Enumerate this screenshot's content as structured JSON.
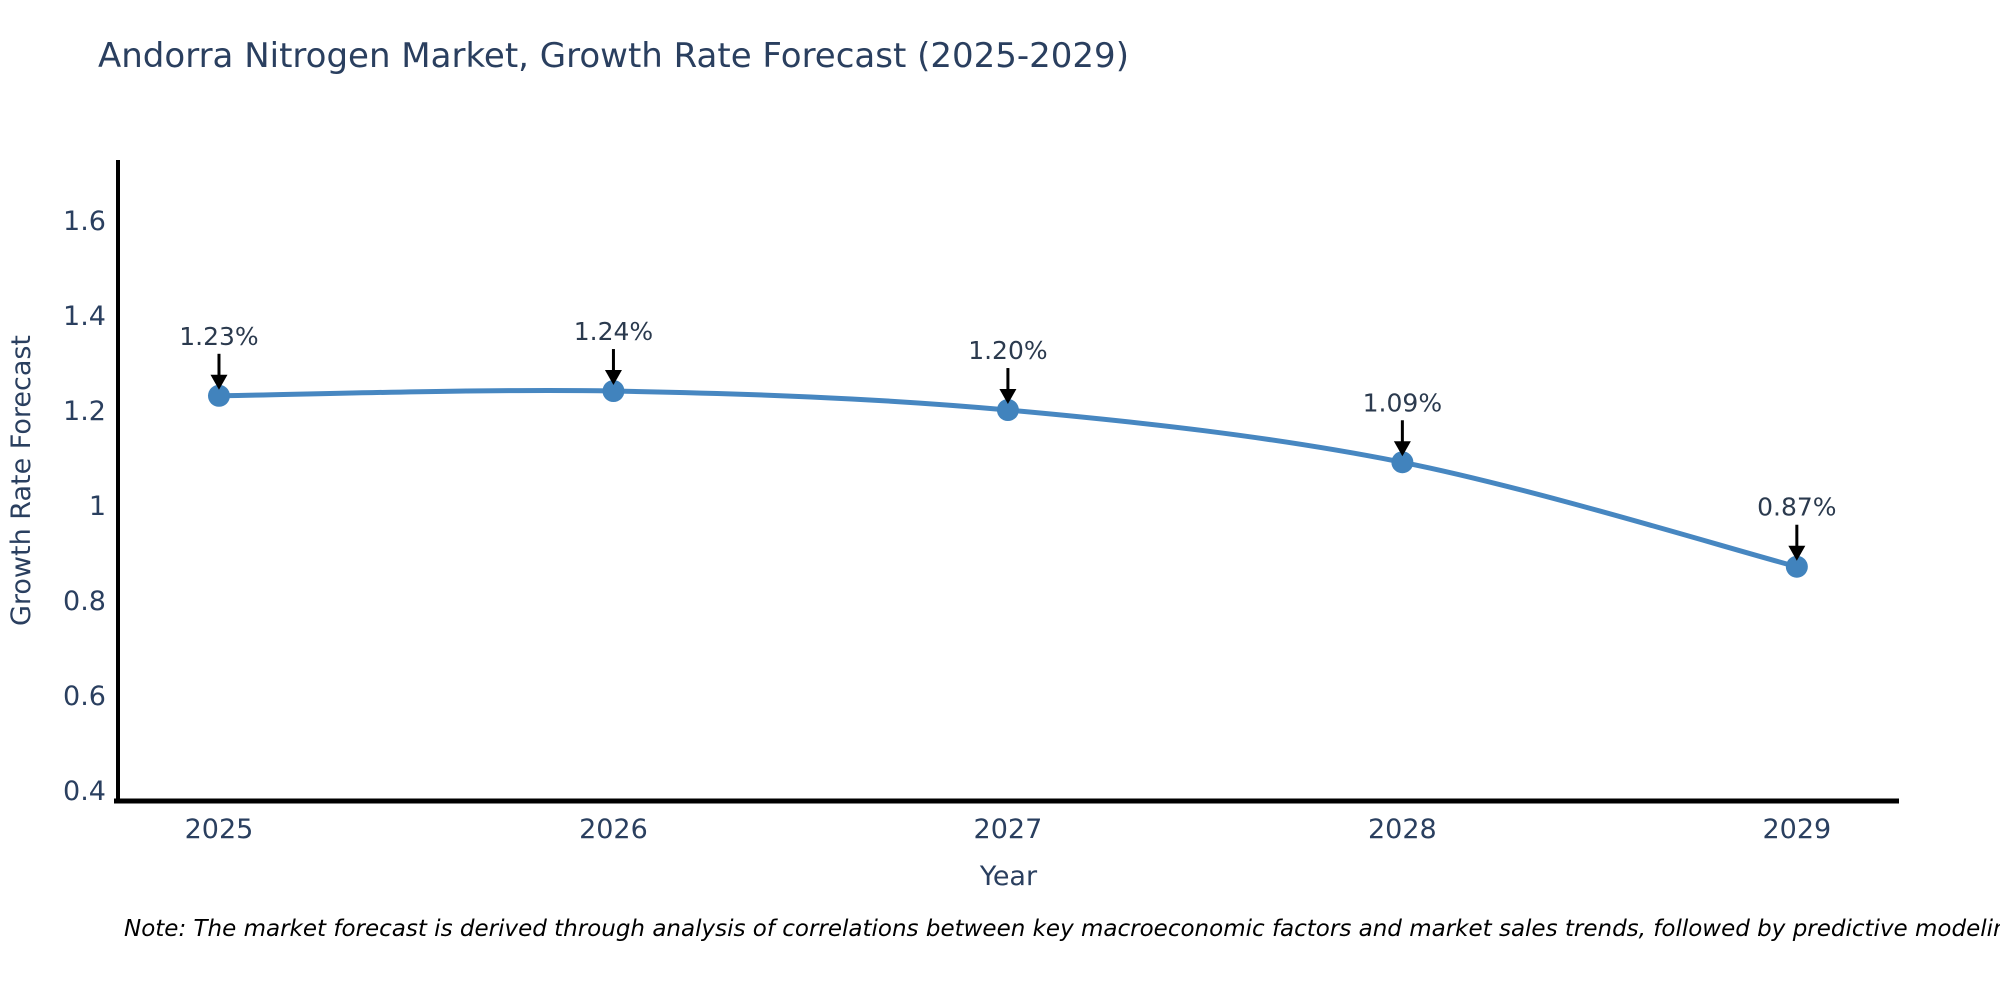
{
  "note": "Note: The market forecast is derived through analysis of correlations between key macroeconomic factors and market sales trends, followed by predictive modeling to project future sales",
  "chart_data": {
    "type": "line",
    "title": "Andorra Nitrogen Market, Growth Rate Forecast (2025-2029)",
    "xlabel": "Year",
    "ylabel": "Growth Rate Forecast",
    "x": [
      2025,
      2026,
      2027,
      2028,
      2029
    ],
    "y": [
      1.23,
      1.24,
      1.2,
      1.09,
      0.87
    ],
    "point_labels": [
      "1.23%",
      "1.24%",
      "1.20%",
      "1.09%",
      "0.87%"
    ],
    "xtick_values": [
      2025,
      2026,
      2027,
      2028,
      2029
    ],
    "xtick_labels": [
      "2025",
      "2026",
      "2027",
      "2028",
      "2029"
    ],
    "ytick_values": [
      0.4,
      0.6,
      0.8,
      1.0,
      1.2,
      1.4,
      1.6
    ],
    "ytick_labels": [
      "0.4",
      "0.6",
      "0.8",
      "1",
      "1.2",
      "1.4",
      "1.6"
    ],
    "xlim": [
      2024.744,
      2029.259
    ],
    "ylim": [
      0.3766,
      1.7266
    ],
    "grid": false,
    "legend": false,
    "line_color": "#4787c1",
    "marker_color": "#4183bd",
    "arrow_color": "#000000",
    "axis_color": "#000000",
    "text_color": "#2a3f5f",
    "annotation_text_color": "#2b3a4e",
    "note_color": "#000000",
    "background": "#ffffff"
  }
}
